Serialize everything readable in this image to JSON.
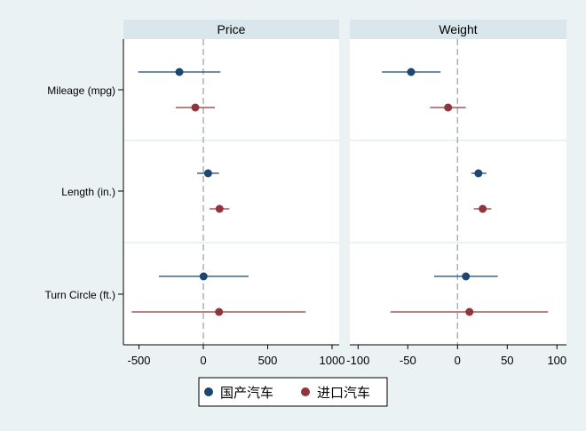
{
  "chart_data": {
    "type": "scatter",
    "subtype": "coefficient plot with confidence intervals",
    "categories": [
      "Mileage (mpg)",
      "Length (in.)",
      "Turn Circle (ft.)"
    ],
    "legend": {
      "placement": "bottom",
      "entries": [
        "国产汽车",
        "进口汽车"
      ]
    },
    "colors": {
      "series_0": "#1a476f",
      "series_1": "#90353b",
      "background": "#eaf2f3",
      "panel_header": "#d9e6eb",
      "reference_line": "#b0b0b0"
    },
    "grid": true,
    "panels": [
      {
        "title": "Price",
        "xlim": [
          -600,
          1030
        ],
        "xticks": [
          -500,
          0,
          500,
          1000
        ],
        "xtick_labels": [
          "-500",
          "0",
          "500",
          "1000"
        ],
        "reference_line": 0,
        "series": [
          {
            "name": "国产汽车",
            "estimates": [
              -186,
              37,
              2
            ],
            "ci_low": [
              -506,
              -48,
              -345
            ],
            "ci_high": [
              133,
              122,
              352
            ]
          },
          {
            "name": "进口汽车",
            "estimates": [
              -62,
              126,
              122
            ],
            "ci_low": [
              -214,
              48,
              -556
            ],
            "ci_high": [
              90,
              202,
              795
            ]
          }
        ]
      },
      {
        "title": "Weight",
        "xlim": [
          -108,
          102
        ],
        "xticks": [
          -100,
          -50,
          0,
          50,
          100
        ],
        "xtick_labels": [
          "-100",
          "-50",
          "0",
          "50",
          "100"
        ],
        "reference_line": 0,
        "series": [
          {
            "name": "国产汽车",
            "estimates": [
              -46.7,
              21,
              8.4
            ],
            "ci_low": [
              -76,
              14,
              -23.5
            ],
            "ci_high": [
              -17,
              29,
              40.5
            ]
          },
          {
            "name": "进口汽车",
            "estimates": [
              -9.5,
              25.3,
              12
            ],
            "ci_low": [
              -27.7,
              16.4,
              -67.5
            ],
            "ci_high": [
              8.4,
              34,
              91
            ]
          }
        ]
      }
    ]
  }
}
